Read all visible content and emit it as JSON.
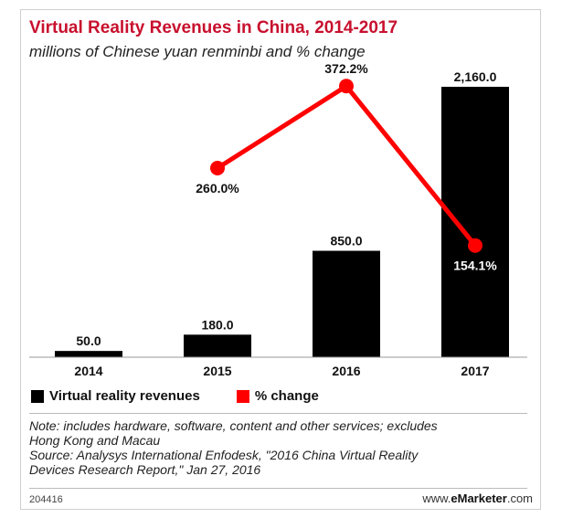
{
  "header": {
    "title": "Virtual Reality Revenues in China, 2014-2017",
    "subtitle": "millions of Chinese yuan renminbi and % change"
  },
  "chart_data": {
    "type": "bar",
    "title": "Virtual Reality Revenues in China, 2014-2017",
    "subtitle": "millions of Chinese yuan renminbi and % change",
    "categories": [
      "2014",
      "2015",
      "2016",
      "2017"
    ],
    "series": [
      {
        "name": "Virtual reality revenues",
        "type": "bar",
        "values": [
          50.0,
          180.0,
          850.0,
          2160.0
        ],
        "labels": [
          "50.0",
          "180.0",
          "850.0",
          "2,160.0"
        ],
        "color": "#000000"
      },
      {
        "name": "% change",
        "type": "line",
        "values": [
          null,
          260.0,
          372.2,
          154.1
        ],
        "labels": [
          "",
          "260.0%",
          "372.2%",
          "154.1%"
        ],
        "color": "#ff0000"
      }
    ],
    "bar_axis_range": [
      0,
      2160
    ],
    "line_axis_range": [
      0,
      400
    ],
    "grid": false,
    "legend_position": "bottom-left"
  },
  "legend": {
    "items": [
      {
        "label": "Virtual reality revenues",
        "color": "#000000"
      },
      {
        "label": "% change",
        "color": "#ff0000"
      }
    ]
  },
  "footer": {
    "note_lines": [
      "Note: includes hardware, software, content and other services; excludes",
      "Hong Kong and Macau",
      "Source: Analysys International Enfodesk, \"2016 China Virtual Reality",
      "Devices Research Report,\" Jan 27, 2016"
    ],
    "chart_id": "204416",
    "brand_prefix": "www.",
    "brand_name": "eMarketer",
    "brand_suffix": ".com"
  }
}
